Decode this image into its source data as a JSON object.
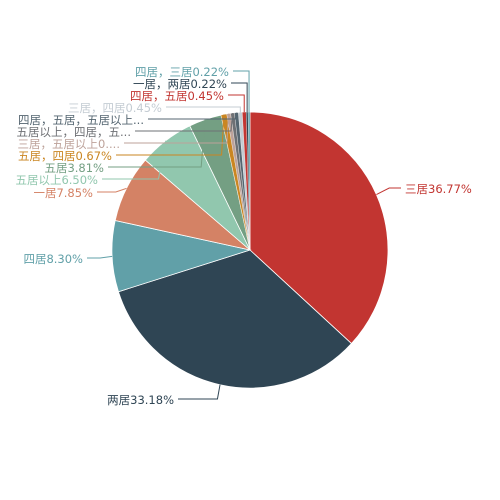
{
  "chart_data": {
    "type": "pie",
    "slices": [
      {
        "label": "三居",
        "value": 36.77,
        "display": "三居36.77%",
        "color": "#c23531",
        "label_color": "#c23531"
      },
      {
        "label": "两居",
        "value": 33.18,
        "display": "两居33.18%",
        "color": "#2f4554",
        "label_color": "#2f4554"
      },
      {
        "label": "四居",
        "value": 8.3,
        "display": "四居8.30%",
        "color": "#61a0a8",
        "label_color": "#61a0a8"
      },
      {
        "label": "一居",
        "value": 7.85,
        "display": "一居7.85%",
        "color": "#d48265",
        "label_color": "#d48265"
      },
      {
        "label": "五居以上",
        "value": 6.5,
        "display": "五居以上6.50%",
        "color": "#91c7ae",
        "label_color": "#91c7ae"
      },
      {
        "label": "五居",
        "value": 3.81,
        "display": "五居3.81%",
        "color": "#749f83",
        "label_color": "#749f83"
      },
      {
        "label": "五居，四居",
        "value": 0.67,
        "display": "五居，四居0.67%",
        "color": "#ca8622",
        "label_color": "#ca8622"
      },
      {
        "label": "三居，五居以上",
        "value": 0.45,
        "display": "三居，五居以上0....",
        "color": "#bda29a",
        "label_color": "#bda29a"
      },
      {
        "label": "五居以上，四居，五居",
        "value": 0.45,
        "display": "五居以上，四居，五...",
        "color": "#6e7074",
        "label_color": "#6e7074"
      },
      {
        "label": "四居，五居，五居以上",
        "value": 0.45,
        "display": "四居，五居，五居以上...",
        "color": "#546570",
        "label_color": "#546570"
      },
      {
        "label": "三居，四居",
        "value": 0.45,
        "display": "三居，四居0.45%",
        "color": "#c4ccd3",
        "label_color": "#c4ccd3"
      },
      {
        "label": "四居，五居",
        "value": 0.45,
        "display": "四居，五居0.45%",
        "color": "#c23531",
        "label_color": "#c23531"
      },
      {
        "label": "一居，两居",
        "value": 0.22,
        "display": "一居，两居0.22%",
        "color": "#2f4554",
        "label_color": "#2f4554"
      },
      {
        "label": "四居，三居",
        "value": 0.22,
        "display": "四居，三居0.22%",
        "color": "#61a0a8",
        "label_color": "#61a0a8"
      }
    ]
  }
}
